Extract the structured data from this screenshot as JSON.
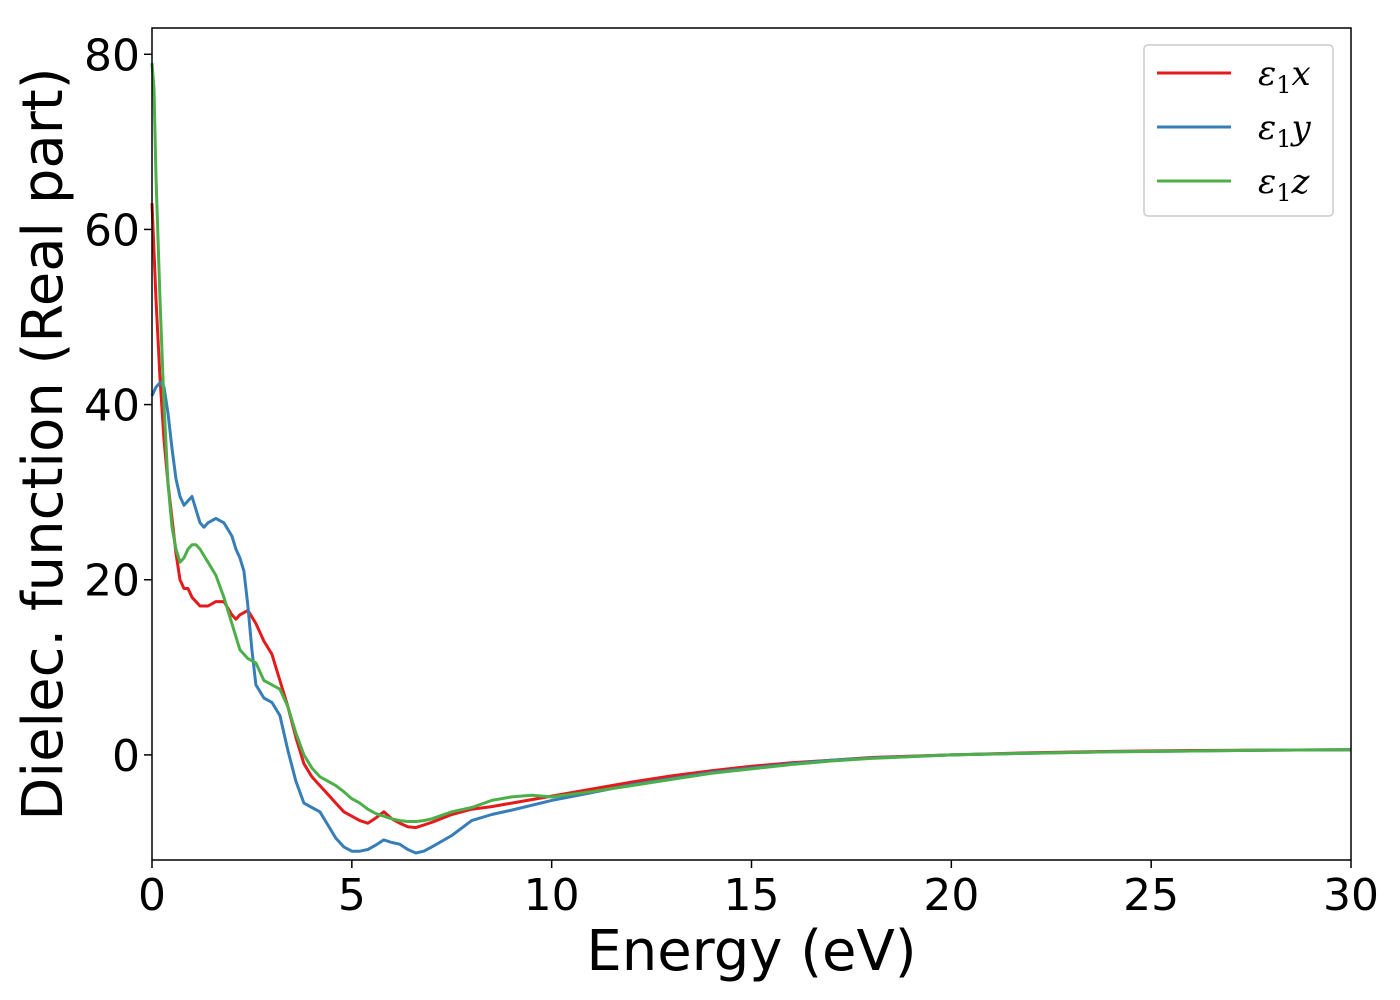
{
  "chart_data": {
    "type": "line",
    "title": "",
    "xlabel": "Energy (eV)",
    "ylabel": "Dielec. function (Real part)",
    "xlim": [
      0,
      30
    ],
    "ylim": [
      -12,
      83
    ],
    "xticks": [
      0,
      5,
      10,
      15,
      20,
      25,
      30
    ],
    "yticks": [
      0,
      20,
      40,
      60,
      80
    ],
    "grid": false,
    "legend_position": "top-right",
    "series": [
      {
        "name": "ε1x",
        "label_base": "ε",
        "label_sub": "1",
        "label_var": "x",
        "color": "#e41a1c",
        "x": [
          0.0,
          0.1,
          0.2,
          0.3,
          0.4,
          0.5,
          0.6,
          0.7,
          0.8,
          0.9,
          1.0,
          1.2,
          1.4,
          1.6,
          1.8,
          2.0,
          2.1,
          2.2,
          2.4,
          2.6,
          2.8,
          3.0,
          3.2,
          3.4,
          3.6,
          3.8,
          4.0,
          4.2,
          4.4,
          4.6,
          4.8,
          5.0,
          5.2,
          5.4,
          5.6,
          5.8,
          6.0,
          6.2,
          6.4,
          6.6,
          6.8,
          7.0,
          7.5,
          8.0,
          8.5,
          9.0,
          10.0,
          11.0,
          12.0,
          13.0,
          14.0,
          15.0,
          16.0,
          17.0,
          18.0,
          20.0,
          22.0,
          24.0,
          26.0,
          28.0,
          30.0
        ],
        "y": [
          63,
          52,
          43,
          36,
          31,
          27,
          23,
          20,
          19,
          19,
          18,
          17,
          17,
          17.5,
          17.5,
          16,
          15.5,
          16,
          16.5,
          15,
          13,
          11.5,
          8.5,
          5.5,
          2,
          -1,
          -2.5,
          -3.5,
          -4.5,
          -5.5,
          -6.5,
          -7,
          -7.5,
          -7.8,
          -7.2,
          -6.5,
          -7.3,
          -7.8,
          -8.2,
          -8.3,
          -8,
          -7.7,
          -6.8,
          -6.2,
          -5.9,
          -5.5,
          -4.7,
          -3.9,
          -3.1,
          -2.4,
          -1.8,
          -1.3,
          -0.9,
          -0.6,
          -0.3,
          0.0,
          0.25,
          0.4,
          0.5,
          0.55,
          0.6
        ]
      },
      {
        "name": "ε1y",
        "label_base": "ε",
        "label_sub": "1",
        "label_var": "y",
        "color": "#377eb8",
        "x": [
          0.0,
          0.1,
          0.2,
          0.3,
          0.4,
          0.5,
          0.6,
          0.7,
          0.8,
          0.9,
          1.0,
          1.1,
          1.2,
          1.3,
          1.4,
          1.6,
          1.8,
          2.0,
          2.1,
          2.2,
          2.3,
          2.4,
          2.5,
          2.6,
          2.8,
          3.0,
          3.2,
          3.4,
          3.6,
          3.8,
          4.0,
          4.2,
          4.4,
          4.6,
          4.8,
          5.0,
          5.2,
          5.4,
          5.6,
          5.8,
          6.0,
          6.2,
          6.4,
          6.6,
          6.8,
          7.0,
          7.5,
          8.0,
          8.5,
          9.0,
          10.0,
          11.0,
          12.0,
          13.0,
          14.0,
          15.0,
          16.0,
          17.0,
          18.0,
          20.0,
          22.0,
          24.0,
          26.0,
          28.0,
          30.0
        ],
        "y": [
          41,
          42,
          42.5,
          42,
          39,
          35,
          31.5,
          29.5,
          28.5,
          29,
          29.5,
          28,
          26.5,
          26,
          26.5,
          27,
          26.5,
          25,
          23.5,
          22.5,
          21,
          17,
          12,
          8,
          6.5,
          6,
          4.5,
          0.5,
          -3,
          -5.5,
          -6,
          -6.5,
          -8,
          -9.5,
          -10.5,
          -11,
          -11,
          -10.8,
          -10.3,
          -9.7,
          -10,
          -10.2,
          -10.8,
          -11.2,
          -11,
          -10.5,
          -9.2,
          -7.5,
          -6.8,
          -6.3,
          -5.2,
          -4.3,
          -3.4,
          -2.7,
          -2.0,
          -1.5,
          -1.0,
          -0.6,
          -0.35,
          0.0,
          0.2,
          0.35,
          0.45,
          0.55,
          0.6
        ]
      },
      {
        "name": "ε1z",
        "label_base": "ε",
        "label_sub": "1",
        "label_var": "z",
        "color": "#4daf4a",
        "x": [
          0.0,
          0.05,
          0.1,
          0.2,
          0.3,
          0.4,
          0.5,
          0.6,
          0.7,
          0.8,
          0.9,
          1.0,
          1.1,
          1.2,
          1.4,
          1.6,
          1.8,
          2.0,
          2.2,
          2.4,
          2.6,
          2.8,
          3.0,
          3.2,
          3.4,
          3.6,
          3.8,
          4.0,
          4.2,
          4.4,
          4.6,
          4.8,
          5.0,
          5.2,
          5.4,
          5.6,
          5.8,
          6.0,
          6.2,
          6.4,
          6.6,
          6.8,
          7.0,
          7.5,
          8.0,
          8.5,
          9.0,
          9.5,
          10.0,
          11.0,
          12.0,
          13.0,
          14.0,
          15.0,
          16.0,
          17.0,
          18.0,
          20.0,
          22.0,
          24.0,
          26.0,
          28.0,
          30.0
        ],
        "y": [
          79,
          76,
          66,
          52,
          40,
          31,
          26,
          23.5,
          22,
          22.5,
          23.5,
          24,
          24,
          23.5,
          22,
          20.5,
          18,
          15,
          12,
          11,
          10.5,
          8.5,
          8,
          7.5,
          5.5,
          2.5,
          0,
          -1.5,
          -2.5,
          -3,
          -3.5,
          -4.2,
          -5,
          -5.5,
          -6.2,
          -6.7,
          -7.0,
          -7.3,
          -7.5,
          -7.6,
          -7.6,
          -7.5,
          -7.3,
          -6.5,
          -6.0,
          -5.2,
          -4.8,
          -4.6,
          -4.8,
          -4.2,
          -3.5,
          -2.8,
          -2.1,
          -1.6,
          -1.1,
          -0.7,
          -0.4,
          0.0,
          0.2,
          0.35,
          0.45,
          0.55,
          0.6
        ]
      }
    ]
  }
}
